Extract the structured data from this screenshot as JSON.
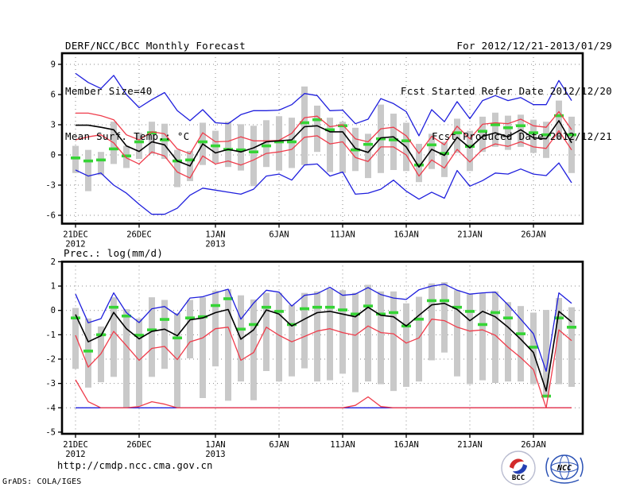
{
  "header": {
    "title": "DERF/NCC/BCC Monthly Forecast",
    "member_size": "Member Size=40",
    "for_range": "For 2012/12/21-2013/01/29",
    "refer_date": "Fcst Started Refer Date 2012/12/20",
    "produced_date": "Fcst Produced Date 2012/12/21"
  },
  "footer": {
    "url": "http://cmdp.ncc.cma.gov.cn",
    "credit": "GrADS: COLA/IGES",
    "bcc_label": "BCC",
    "ncc_label": "NCC"
  },
  "colors": {
    "envelope": "#1f1fdd",
    "spread": "#ef3c4b",
    "mean": "#000000",
    "obs": "#35d435",
    "bar": "#c9c9c9",
    "grid": "#8a8a8a"
  },
  "chart_data": [
    {
      "type": "line",
      "title": "Mean Surf. Temp.: °C",
      "n_days": 40,
      "ylim": [
        -6.8,
        10.1
      ],
      "grid": "dotted",
      "y_ticks": [
        9,
        6,
        3,
        0,
        -3,
        -6
      ],
      "x_ticks": [
        {
          "day": 0,
          "label": "21DEC",
          "year": "2012"
        },
        {
          "day": 5,
          "label": "26DEC"
        },
        {
          "day": 11,
          "label": "1JAN",
          "year": "2013"
        },
        {
          "day": 16,
          "label": "6JAN"
        },
        {
          "day": 21,
          "label": "11JAN"
        },
        {
          "day": 26,
          "label": "16JAN"
        },
        {
          "day": 31,
          "label": "21JAN"
        },
        {
          "day": 36,
          "label": "26JAN"
        }
      ],
      "bars": {
        "low": [
          -1.8,
          -3.6,
          -2.0,
          -0.9,
          -1.3,
          -0.4,
          0.1,
          -0.4,
          -3.2,
          -2.6,
          -1.0,
          -0.8,
          -1.2,
          -1.55,
          -3.1,
          -1.2,
          -1.55,
          -1.3,
          -1.0,
          0.3,
          -1.7,
          -1.8,
          -1.6,
          -2.3,
          -1.8,
          -1.5,
          -1.6,
          -2.7,
          -1.4,
          -2.2,
          0.2,
          -1.6,
          0.3,
          0.8,
          0.5,
          0.8,
          0.2,
          -0.3,
          1.5,
          -1.8
        ],
        "high": [
          0.9,
          0.5,
          0.3,
          3.3,
          0.9,
          2.2,
          3.3,
          3.1,
          0.5,
          0.4,
          3.2,
          2.4,
          3.3,
          3.05,
          2.9,
          3.45,
          3.85,
          3.7,
          6.8,
          4.9,
          3.7,
          3.3,
          2.7,
          2.1,
          5.0,
          4.1,
          3.2,
          1.1,
          2.1,
          1.3,
          3.6,
          2.4,
          3.8,
          4.2,
          3.9,
          4.0,
          3.5,
          3.3,
          5.4,
          3.8
        ]
      },
      "series": [
        {
          "name": "ensemble-max",
          "color": "envelope",
          "style": "line",
          "values": [
            8.1,
            7.2,
            6.6,
            7.9,
            6.0,
            4.7,
            5.5,
            6.2,
            4.4,
            3.4,
            4.5,
            3.2,
            3.1,
            4.0,
            4.4,
            4.4,
            4.45,
            5.0,
            6.1,
            5.9,
            4.4,
            4.45,
            3.1,
            3.55,
            5.6,
            5.1,
            4.3,
            1.9,
            4.5,
            3.3,
            5.3,
            3.6,
            5.4,
            5.9,
            5.4,
            5.7,
            5.0,
            5.0,
            7.4,
            5.4
          ]
        },
        {
          "name": "ensemble-min",
          "color": "envelope",
          "style": "line",
          "values": [
            -1.5,
            -2.1,
            -1.8,
            -3.0,
            -3.8,
            -4.9,
            -5.9,
            -5.9,
            -5.3,
            -4.0,
            -3.3,
            -3.5,
            -3.7,
            -3.9,
            -3.4,
            -2.1,
            -1.9,
            -2.5,
            -1.0,
            -0.9,
            -2.1,
            -1.7,
            -3.9,
            -3.8,
            -3.4,
            -2.5,
            -3.6,
            -4.4,
            -3.7,
            -4.3,
            -1.55,
            -3.1,
            -2.55,
            -1.8,
            -1.9,
            -1.4,
            -1.9,
            -2.05,
            -0.8,
            -2.76
          ]
        },
        {
          "name": "upper-spread",
          "color": "spread",
          "style": "line",
          "values": [
            4.15,
            4.15,
            3.9,
            3.5,
            2.0,
            1.5,
            2.3,
            2.1,
            0.6,
            0.1,
            2.2,
            1.3,
            1.35,
            1.8,
            1.4,
            1.4,
            1.45,
            2.15,
            3.7,
            3.85,
            2.8,
            3.0,
            1.6,
            1.3,
            2.6,
            2.75,
            1.9,
            0.15,
            1.85,
            1.0,
            2.85,
            1.6,
            3.05,
            3.2,
            3.1,
            3.55,
            2.9,
            2.75,
            4.3,
            2.5
          ]
        },
        {
          "name": "lower-spread",
          "color": "spread",
          "style": "line",
          "values": [
            1.5,
            1.8,
            2.0,
            1.2,
            -0.3,
            -0.9,
            0.3,
            -0.1,
            -1.7,
            -2.3,
            -0.1,
            -0.9,
            -0.6,
            -1.0,
            -0.5,
            0.15,
            0.3,
            0.55,
            1.75,
            1.9,
            1.1,
            1.3,
            -0.25,
            -0.65,
            0.8,
            0.8,
            0.0,
            -2.1,
            -0.5,
            -1.3,
            0.55,
            -0.7,
            0.55,
            1.1,
            0.85,
            1.3,
            0.8,
            0.65,
            2.4,
            0.5
          ]
        },
        {
          "name": "observation",
          "color": "obs",
          "style": "dash",
          "values": [
            -0.3,
            -0.6,
            -0.5,
            0.6,
            -0.1,
            1.3,
            2.2,
            1.5,
            -0.6,
            -0.5,
            1.3,
            0.9,
            0.55,
            0.5,
            0.3,
            0.9,
            1.3,
            1.3,
            3.2,
            3.5,
            2.5,
            2.9,
            0.5,
            1.05,
            1.6,
            1.5,
            1.4,
            -1.0,
            1.0,
            0.15,
            2.2,
            0.85,
            2.35,
            3.0,
            2.7,
            2.9,
            2.2,
            2.0,
            3.9,
            2.0
          ]
        },
        {
          "name": "ensemble-mean",
          "color": "mean",
          "style": "line",
          "values": [
            2.95,
            2.95,
            2.75,
            2.5,
            0.9,
            0.35,
            1.3,
            1.0,
            -0.6,
            -1.1,
            1.1,
            0.2,
            0.55,
            0.3,
            0.7,
            1.3,
            1.4,
            1.5,
            2.8,
            2.9,
            2.3,
            2.3,
            0.65,
            0.25,
            1.7,
            1.8,
            0.8,
            -1.2,
            0.55,
            -0.05,
            1.75,
            0.7,
            1.85,
            2.2,
            1.8,
            2.5,
            1.7,
            1.6,
            3.4,
            1.2
          ]
        }
      ]
    },
    {
      "type": "line",
      "title": "Prec.: log(mm/d)",
      "n_days": 40,
      "ylim": [
        -5.1,
        2.0
      ],
      "grid": "dotted",
      "y_ticks": [
        2,
        1,
        0,
        -1,
        -2,
        -3,
        -4,
        -5
      ],
      "x_ticks": [
        {
          "day": 0,
          "label": "21DEC",
          "year": "2012"
        },
        {
          "day": 5,
          "label": "26DEC"
        },
        {
          "day": 11,
          "label": "1JAN",
          "year": "2013"
        },
        {
          "day": 16,
          "label": "6JAN"
        },
        {
          "day": 21,
          "label": "11JAN"
        },
        {
          "day": 26,
          "label": "16JAN"
        },
        {
          "day": 31,
          "label": "21JAN"
        },
        {
          "day": 36,
          "label": "26JAN"
        }
      ],
      "bars": {
        "low": [
          -2.4,
          -3.17,
          -2.95,
          -2.73,
          -4.0,
          -3.93,
          -2.73,
          -2.4,
          -4.0,
          -1.97,
          -3.6,
          -2.3,
          -3.71,
          -2.92,
          -3.69,
          -2.49,
          -2.92,
          -2.71,
          -2.38,
          -2.92,
          -2.87,
          -2.6,
          -3.36,
          -2.92,
          -3.03,
          -3.31,
          -3.14,
          -2.92,
          -2.05,
          -1.73,
          -2.71,
          -3.03,
          -2.87,
          -2.98,
          -2.92,
          -2.92,
          -3.03,
          -3.58,
          -3.03,
          -3.14
        ],
        "high": [
          0.1,
          -0.33,
          -0.66,
          0.54,
          0.05,
          -0.33,
          0.54,
          0.43,
          -0.11,
          0.43,
          0.54,
          0.81,
          0.87,
          0.62,
          0.45,
          0.72,
          0.72,
          0.23,
          0.72,
          0.78,
          0.89,
          0.83,
          0.72,
          1.05,
          0.78,
          0.78,
          0.29,
          0.56,
          1.11,
          1.16,
          0.83,
          0.67,
          0.72,
          0.78,
          0.34,
          0.18,
          -0.09,
          0.02,
          0.51,
          0.13
        ]
      },
      "series": [
        {
          "name": "ensemble-max",
          "color": "envelope",
          "style": "line",
          "values": [
            0.67,
            -0.51,
            -0.34,
            0.72,
            -0.09,
            -0.5,
            0.07,
            0.16,
            -0.2,
            0.51,
            0.56,
            0.72,
            0.87,
            -0.36,
            0.3,
            0.83,
            0.75,
            0.18,
            0.62,
            0.69,
            0.95,
            0.62,
            0.67,
            0.94,
            0.65,
            0.51,
            0.45,
            0.85,
            1.0,
            1.08,
            0.83,
            0.67,
            0.72,
            0.75,
            0.23,
            -0.36,
            -0.96,
            -2.5,
            0.72,
            0.29
          ]
        },
        {
          "name": "ensemble-min",
          "color": "envelope",
          "style": "line",
          "values": [
            -4,
            -4,
            -4,
            -4,
            -4,
            -4,
            -4,
            -4,
            -4,
            -4,
            -4,
            -4,
            -4,
            -4,
            -4,
            -4,
            -4,
            -4,
            -4,
            -4,
            -4,
            -4,
            -4,
            -4,
            -4,
            -4,
            -4,
            -4,
            -4,
            -4,
            -4,
            -4,
            -4,
            -4,
            -4,
            -4,
            -4,
            -4,
            -4,
            -4
          ]
        },
        {
          "name": "lower-spread",
          "color": "spread",
          "style": "line",
          "values": [
            -1.02,
            -2.33,
            -1.78,
            -0.86,
            -1.45,
            -2.05,
            -1.56,
            -1.48,
            -2.02,
            -1.29,
            -1.13,
            -0.75,
            -0.69,
            -2.05,
            -1.73,
            -0.69,
            -1.02,
            -1.29,
            -1.07,
            -0.85,
            -0.75,
            -0.91,
            -1.02,
            -0.64,
            -0.91,
            -0.96,
            -1.34,
            -1.13,
            -0.36,
            -0.42,
            -0.69,
            -0.85,
            -0.8,
            -1.02,
            -1.51,
            -1.94,
            -2.43,
            -4.0,
            -0.8,
            -1.24
          ]
        },
        {
          "name": "minimum-bound",
          "color": "spread",
          "style": "line",
          "values": [
            -2.85,
            -3.75,
            -4,
            -4,
            -4,
            -3.95,
            -3.75,
            -3.85,
            -4,
            -4,
            -4,
            -4,
            -4,
            -4,
            -4,
            -4,
            -4,
            -4,
            -4,
            -4,
            -4,
            -4,
            -3.9,
            -3.55,
            -3.95,
            -4,
            -4,
            -4,
            -4,
            -4,
            -4,
            -4,
            -4,
            -4,
            -4,
            -4,
            -4,
            -4,
            -4,
            -4
          ]
        },
        {
          "name": "observation",
          "color": "obs",
          "style": "dash",
          "values": [
            -0.31,
            -1.67,
            -1.0,
            0.13,
            -0.23,
            -1.02,
            -0.8,
            -0.37,
            -1.13,
            -0.31,
            -0.26,
            0.2,
            0.48,
            -0.77,
            -0.58,
            0.13,
            -0.04,
            -0.58,
            0.07,
            0.13,
            0.13,
            0.02,
            -0.15,
            0.18,
            -0.15,
            -0.09,
            -0.64,
            -0.36,
            0.4,
            0.4,
            0.13,
            -0.04,
            -0.58,
            -0.09,
            -0.31,
            -0.96,
            -1.51,
            -3.52,
            -0.31,
            -0.69
          ]
        },
        {
          "name": "ensemble-mean",
          "color": "mean",
          "style": "line",
          "values": [
            -0.17,
            -1.29,
            -1.04,
            -0.08,
            -0.75,
            -1.17,
            -0.86,
            -0.77,
            -1.04,
            -0.39,
            -0.31,
            -0.09,
            0.04,
            -1.18,
            -0.8,
            0.02,
            -0.15,
            -0.64,
            -0.36,
            -0.09,
            -0.04,
            -0.15,
            -0.26,
            0.13,
            -0.2,
            -0.26,
            -0.64,
            -0.2,
            0.23,
            0.29,
            0.04,
            -0.42,
            -0.04,
            -0.26,
            -0.69,
            -1.18,
            -1.73,
            -3.31,
            -0.04,
            -0.47
          ]
        }
      ]
    }
  ]
}
